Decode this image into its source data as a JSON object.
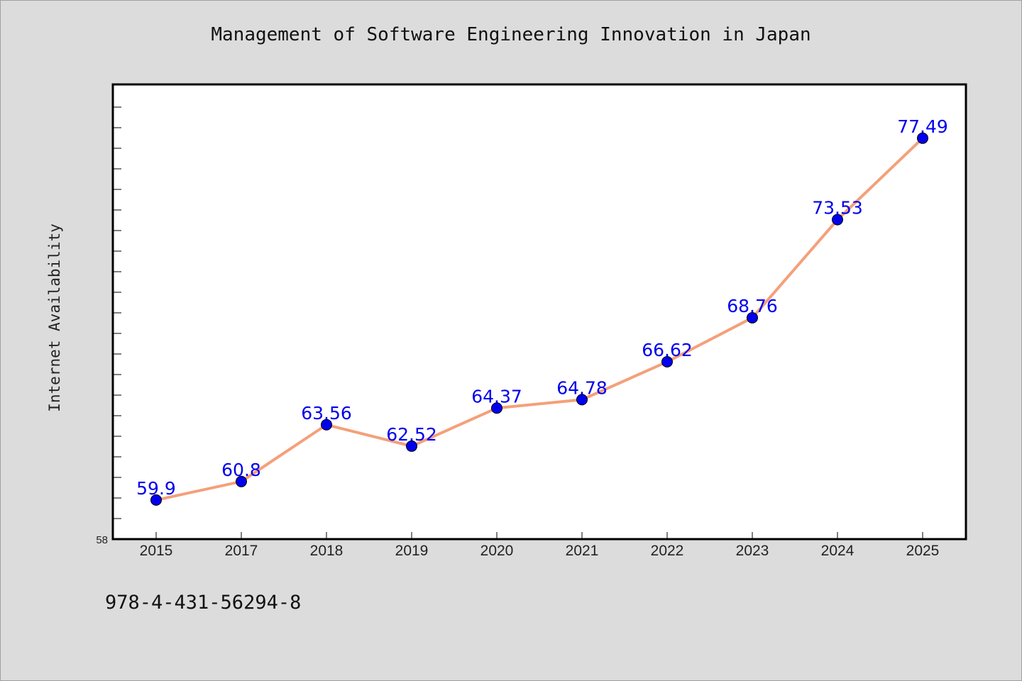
{
  "chart_data": {
    "type": "line",
    "title": "Management of Software Engineering Innovation in Japan",
    "xlabel": "",
    "ylabel": "Internet Availability",
    "categories": [
      "2015",
      "2017",
      "2018",
      "2019",
      "2020",
      "2021",
      "2022",
      "2023",
      "2024",
      "2025"
    ],
    "series": [
      {
        "values": [
          59.9,
          60.8,
          63.56,
          62.52,
          64.37,
          64.78,
          66.62,
          68.76,
          73.53,
          77.49
        ],
        "labels": [
          "59.9",
          "60.8",
          "63.56",
          "62.52",
          "64.37",
          "64.78",
          "66.62",
          "68.76",
          "73.53",
          "77.49"
        ],
        "line_color": "#f4a07a",
        "marker_color": "#0000ee"
      }
    ],
    "ylim": [
      58,
      80
    ],
    "y_tick_min_label": "58",
    "grid": false,
    "legend": "none"
  },
  "footnote": "978-4-431-56294-8",
  "colors": {
    "background": "#dcdcdc",
    "plot_background": "#ffffff",
    "line": "#f4a07a",
    "marker": "#0000ee",
    "label": "#0000ee"
  }
}
